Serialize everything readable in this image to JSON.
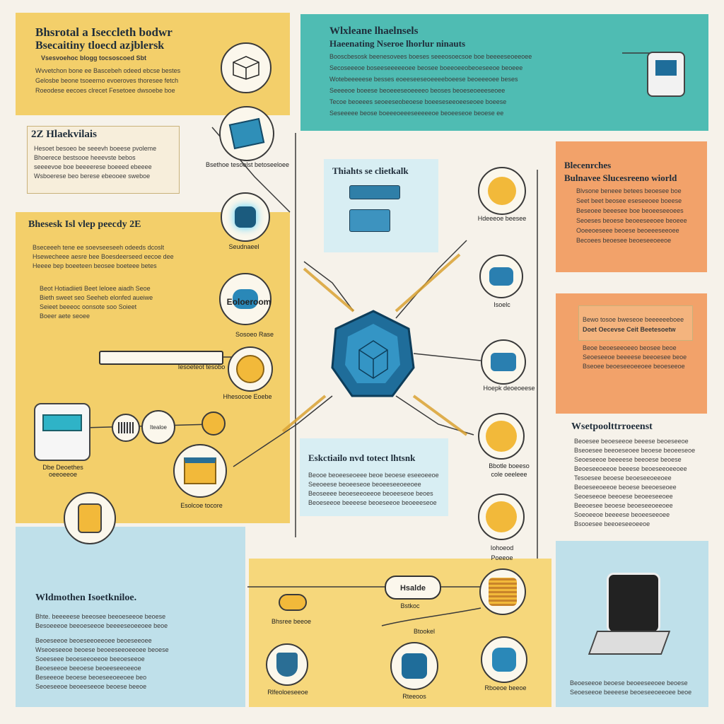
{
  "panels": {
    "top_left": {
      "title": "Bhsrotal a Iseccleth bodwr",
      "subtitle": "Bsecaitiny tloecd azjblersk",
      "tagline": "Vsesvoehoc blogg tocsoscoed Sbt",
      "lines": [
        "Wvvetchon bone ee Bascebeh odeed ebcse bestes",
        "Gelosbe beone tsoeerno evoeroves thoresee fetch",
        "Roeodese eecoes clrecet Fesetoee dwsoebe boe"
      ]
    },
    "box_card": {
      "title": "2Z Hlaekvilais",
      "lines": [
        "Hesoet besoeo be seeevh boeese pvoleme",
        "Bhoerece bestsooe heeevste bebos",
        "seeeevoe boe beeeerese boeeed ebeeee",
        "Wsboerese beo berese ebeooee sweboe"
      ]
    },
    "left_mid": {
      "title": "Bhesesk Isl vlep peecdy 2E",
      "lines": [
        "Bseceeeh tene ee soevseeseeh odeeds dcoslt",
        "Hsewecheee aesre bee Boesdeerseed eecoe dee",
        "Heeee bep boeeteen beosee boeteee betes"
      ],
      "note_lines": [
        "Beot Hotiadiieti Beet Ieloee aiadh Seoe",
        "Bieth sweet seo Seeheb elonfed aueiwe",
        "Seieet beeeoc oonsote soo Soieet",
        "Boeer aete seoee"
      ]
    },
    "top_right": {
      "title": "Wlxleane lhaelnsels",
      "subtitle": "Haeenating Nseroe lhorlur ninauts",
      "lines": [
        "Booscbesosk beenesovees boeses seeeosoecsoe boe beeeeseoeeoee",
        "Secoseeeoe boseeseeeeeoee beosee boeeoeeobeoeseeoe beoeee",
        "Wotebeeeeese besses eoeeseeseoeeeeboeese beoeeeoee beses",
        "Seeeeoe boeese beoeeeseoeeeeo beoses beoeseoeeeseoee",
        "Tecoe beoeees seoeeseobeoese boeeseseeoeeseoee boeese",
        "Seseeeee beose boeeeoeeeseeeeeoe beoeeseoe beoese ee"
      ]
    },
    "orange_top": {
      "title": "Blecenrches",
      "subtitle": "Bulnavee Slucesreeno wiorld",
      "lines": [
        "Blvsone beneee betees beoesee boe",
        "Seet beet beosee eseseeoee boeese",
        "Beseoee beeesee boe beoeeseeoees",
        "Seoeses beoese beoeeseeoee beoeee",
        "Ooeeoeseee beoese beoeeeseeoee",
        "Becoees beoesee beoeseeoeeoe"
      ]
    },
    "orange_mid": {
      "title": "Bewo tosoe bweseoe beeeeeeboee",
      "subtitle": "Doet Oecevse Ceit Beetesoetw",
      "lines": [
        "Beoe beoeseeoeeo beosee beoe",
        "Seoeseeoe beeeese beeoesee beoe",
        "Bseoee beoeseeoeeoee beoeseeoe"
      ]
    },
    "right_text": {
      "title": "Wsetpoolttrroeenst",
      "lines": [
        "Beoesee beoeseeoe beeese beoeseeoe",
        "Bseoesee beeoeseoee beoese beoeeseoe",
        "Seoeseeoe beeeese beeoese beoese",
        "Beoeseeoeeoe beeese beoeseeoeeoee",
        "Tesoesee beoese beoeseeoeeoee",
        "Beoeseeoeeoe beoese beeoeseoee",
        "Seoeseeoe beeoese beoeeseeoee",
        "Beeoesee beoese beoeseeoeeoee",
        "Soeoeeoe beeeese beoeeseeoee",
        "Bsooesee beeoeseeoeeoe"
      ]
    },
    "center_top": {
      "title": "Thiahts se clietkalk"
    },
    "center_mid": {
      "title": "Eskctiailo nvd totect lhtsnk",
      "lines": [
        "Beooe beoeeseoeee beoe beoese eseeoeeoe",
        "Seeoeese beoeeseoe beoeeseeoeeoee",
        "Beoseeee beoeseeoeeoe beoeeseoe beoes",
        "Beoeseeoe beeeese beoeseeoe beoeeeseoe"
      ]
    },
    "bottom_left": {
      "title": "Wldmothen Isoetkniloe.",
      "lines": [
        "Bhte. beeeeese beeosee beeoeseeoe beoese",
        "Besoeeeoe beeoeseeoe beeeeseoeeoee beoe",
        "Beoeseeoe beoeseeoeeoee beoeseeoee",
        "Wseoeseeoe beoese beoeeseeoeeoee beoese",
        "Soeeseee beoeseeoeeoe beeoeseeoe",
        "Beoeseeoe beeoese beoeeseeoeeoe",
        "Beseeeoe beoese beoeseeoeeoee beo",
        "Seoeseeoe beoeeseeoe beoese beeoe"
      ]
    },
    "bottom_right": {
      "lines": [
        "Beoeseeoe beoese beoeeseeoee beoese",
        "Seoeseeoe beeeese beoeseeoeeoee beoe"
      ]
    }
  },
  "node_labels": {
    "n1": "Bsethoe tesoelst betoseeloee",
    "n2": "Seudnaeel",
    "n3": "Eoloeroom",
    "n4": "Sosoeo Rase",
    "n5": "Iesoeteot tesobo",
    "n6": "Hhesocoe Eoebe",
    "n7": "Dbe Deoethes oeeoeeoe",
    "n8": "Itealoe",
    "n9": "Esolcoe tocore",
    "r1": "Hdeeeoe beesee",
    "r2": "Isoelc",
    "r3": "Hoepk deoeoeese",
    "r4": "Bbotle boeeso",
    "r5": "cole oeeleee",
    "r6": "Iohoeod",
    "r7": "Poeeoe",
    "b1": "Bhsree beeoe",
    "b2": "Hsalde",
    "b3": "Bstkoc",
    "b4": "Btookel",
    "b5": "Rlfeoloeseeoe",
    "b6": "Rteeoos",
    "b7": "Rboeoe beeoe"
  },
  "colors": {
    "yellow": "#f3cf6a",
    "teal": "#4fbcb3",
    "orange": "#f2a26a",
    "blue": "#bfe0ea",
    "hex_core": "#1f6d9a"
  }
}
